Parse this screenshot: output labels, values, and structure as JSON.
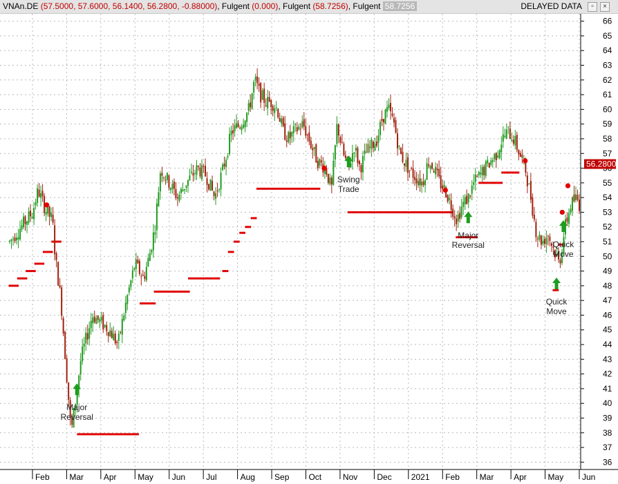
{
  "title": {
    "symbol": "VNAn.DE",
    "ohlc": "(57.5000, 57.6000, 56.1400, 56.2800, -0.88000)",
    "ind1_name": "Fulgent",
    "ind1_value": "(0.000)",
    "ind2_name": "Fulgent",
    "ind2_value": "(58.7256)",
    "ind3_name": "Fulgent",
    "ind3_value": "58.7256",
    "status": "DELAYED DATA"
  },
  "window_buttons": {
    "restore": "▫",
    "close": "×"
  },
  "last_price_label": "56.2800",
  "colors": {
    "up": "#1f9a1f",
    "down": "#a0200c",
    "signal": "#e00000",
    "arrow": "#1e9c1e",
    "grid": "#b8b8b8",
    "last_price_bg": "#c00000"
  },
  "chart_data": {
    "type": "candlestick",
    "y_range": [
      35.5,
      66.5
    ],
    "y_ticks": [
      36,
      37,
      38,
      39,
      40,
      41,
      42,
      43,
      44,
      45,
      46,
      47,
      48,
      49,
      50,
      51,
      52,
      53,
      54,
      55,
      56,
      57,
      58,
      59,
      60,
      61,
      62,
      63,
      64,
      65,
      66
    ],
    "x_range": [
      0,
      100
    ],
    "months": [
      {
        "label": "Feb",
        "x": 4.0
      },
      {
        "label": "Mar",
        "x": 10.0
      },
      {
        "label": "Apr",
        "x": 16.0
      },
      {
        "label": "May",
        "x": 22.0
      },
      {
        "label": "Jun",
        "x": 28.0
      },
      {
        "label": "Jul",
        "x": 34.0
      },
      {
        "label": "Aug",
        "x": 40.0
      },
      {
        "label": "Sep",
        "x": 46.0
      },
      {
        "label": "Oct",
        "x": 52.0
      },
      {
        "label": "Nov",
        "x": 58.0
      },
      {
        "label": "Dec",
        "x": 64.0
      },
      {
        "label": "2021",
        "x": 70.0
      },
      {
        "label": "Feb",
        "x": 76.0
      },
      {
        "label": "Mar",
        "x": 82.0
      },
      {
        "label": "Apr",
        "x": 88.0
      },
      {
        "label": "May",
        "x": 94.0
      },
      {
        "label": "Jun",
        "x": 100.0
      }
    ],
    "price_path": [
      [
        0.0,
        51.0
      ],
      [
        2.0,
        52.0
      ],
      [
        4.0,
        53.0
      ],
      [
        5.0,
        54.5
      ],
      [
        6.5,
        53.0
      ],
      [
        7.5,
        52.5
      ],
      [
        8.0,
        50.0
      ],
      [
        9.0,
        47.0
      ],
      [
        10.0,
        42.0
      ],
      [
        10.8,
        38.0
      ],
      [
        11.5,
        40.0
      ],
      [
        12.5,
        43.0
      ],
      [
        13.5,
        44.5
      ],
      [
        14.5,
        46.0
      ],
      [
        16.0,
        45.5
      ],
      [
        17.5,
        45.0
      ],
      [
        19.0,
        44.0
      ],
      [
        20.5,
        47.0
      ],
      [
        22.0,
        49.5
      ],
      [
        23.5,
        48.5
      ],
      [
        24.5,
        50.0
      ],
      [
        25.5,
        52.0
      ],
      [
        26.5,
        56.0
      ],
      [
        28.0,
        55.0
      ],
      [
        29.5,
        54.0
      ],
      [
        31.0,
        55.0
      ],
      [
        33.0,
        56.0
      ],
      [
        34.5,
        55.5
      ],
      [
        36.0,
        54.0
      ],
      [
        37.5,
        56.0
      ],
      [
        39.0,
        58.5
      ],
      [
        40.5,
        59.0
      ],
      [
        42.0,
        60.0
      ],
      [
        43.0,
        62.0
      ],
      [
        44.0,
        61.0
      ],
      [
        45.0,
        60.5
      ],
      [
        46.0,
        60.5
      ],
      [
        47.0,
        60.0
      ],
      [
        48.0,
        58.5
      ],
      [
        49.0,
        58.0
      ],
      [
        50.0,
        58.5
      ],
      [
        51.5,
        59.0
      ],
      [
        52.5,
        58.0
      ],
      [
        54.0,
        56.5
      ],
      [
        55.5,
        56.0
      ],
      [
        56.5,
        54.5
      ],
      [
        57.5,
        59.0
      ],
      [
        58.5,
        57.0
      ],
      [
        59.5,
        56.0
      ],
      [
        60.5,
        57.5
      ],
      [
        61.5,
        56.0
      ],
      [
        62.5,
        57.0
      ],
      [
        63.5,
        57.5
      ],
      [
        64.5,
        58.0
      ],
      [
        65.5,
        59.5
      ],
      [
        66.5,
        60.0
      ],
      [
        67.5,
        59.0
      ],
      [
        68.5,
        57.0
      ],
      [
        70.0,
        56.0
      ],
      [
        71.0,
        55.5
      ],
      [
        72.5,
        55.0
      ],
      [
        73.5,
        56.5
      ],
      [
        74.5,
        56.0
      ],
      [
        75.5,
        55.0
      ],
      [
        76.5,
        54.5
      ],
      [
        77.5,
        53.5
      ],
      [
        78.5,
        52.5
      ],
      [
        79.5,
        53.5
      ],
      [
        80.5,
        54.0
      ],
      [
        81.5,
        55.0
      ],
      [
        82.5,
        55.5
      ],
      [
        83.5,
        56.0
      ],
      [
        84.5,
        56.5
      ],
      [
        85.5,
        57.0
      ],
      [
        86.5,
        58.0
      ],
      [
        87.5,
        58.5
      ],
      [
        88.5,
        58.0
      ],
      [
        89.5,
        57.0
      ],
      [
        90.5,
        56.0
      ],
      [
        91.5,
        54.0
      ],
      [
        92.5,
        51.5
      ],
      [
        93.5,
        51.0
      ],
      [
        94.5,
        51.5
      ],
      [
        95.5,
        50.5
      ],
      [
        96.5,
        49.5
      ],
      [
        97.5,
        52.0
      ],
      [
        98.5,
        53.5
      ],
      [
        99.5,
        54.0
      ],
      [
        100.0,
        53.5
      ]
    ],
    "stop_levels": [
      {
        "x0": 0.0,
        "x1": 1.5,
        "y": 48.0
      },
      {
        "x0": 1.5,
        "x1": 3.0,
        "y": 48.5
      },
      {
        "x0": 3.0,
        "x1": 4.5,
        "y": 49.0
      },
      {
        "x0": 4.5,
        "x1": 6.0,
        "y": 49.5
      },
      {
        "x0": 6.0,
        "x1": 7.5,
        "y": 50.3
      },
      {
        "x0": 7.5,
        "x1": 9.0,
        "y": 51.0
      },
      {
        "x0": 12.0,
        "x1": 22.5,
        "y": 37.9
      },
      {
        "x0": 23.0,
        "x1": 25.5,
        "y": 46.8
      },
      {
        "x0": 25.5,
        "x1": 31.5,
        "y": 47.6
      },
      {
        "x0": 31.5,
        "x1": 37.0,
        "y": 48.5
      },
      {
        "x0": 37.5,
        "x1": 38.5,
        "y": 49.0
      },
      {
        "x0": 38.5,
        "x1": 39.5,
        "y": 50.3
      },
      {
        "x0": 39.5,
        "x1": 40.5,
        "y": 51.0
      },
      {
        "x0": 40.5,
        "x1": 41.5,
        "y": 51.6
      },
      {
        "x0": 41.5,
        "x1": 42.5,
        "y": 52.0
      },
      {
        "x0": 42.5,
        "x1": 43.5,
        "y": 52.6
      },
      {
        "x0": 43.5,
        "x1": 54.5,
        "y": 54.6
      },
      {
        "x0": 59.5,
        "x1": 78.0,
        "y": 53.0
      },
      {
        "x0": 78.5,
        "x1": 82.0,
        "y": 51.3
      },
      {
        "x0": 82.5,
        "x1": 86.5,
        "y": 55.0
      },
      {
        "x0": 86.5,
        "x1": 89.5,
        "y": 55.7
      },
      {
        "x0": 95.5,
        "x1": 96.5,
        "y": 47.7
      },
      {
        "x0": 96.5,
        "x1": 97.5,
        "y": 50.8
      }
    ],
    "sell_signals": [
      {
        "x": 6.5,
        "y": 53.5
      },
      {
        "x": 55.2,
        "y": 56.0
      },
      {
        "x": 76.5,
        "y": 54.5
      },
      {
        "x": 90.5,
        "y": 56.5
      },
      {
        "x": 97.0,
        "y": 53.0
      },
      {
        "x": 98.0,
        "y": 54.8
      }
    ],
    "buy_signals": [
      {
        "x": 11.8,
        "label_lines": [
          "Major",
          "Reversal"
        ],
        "arrow_y": 40.7,
        "label_y": 40.0
      },
      {
        "x": 59.5,
        "label_lines": [
          "Swing",
          "Trade"
        ],
        "arrow_y": 56.2,
        "label_y": 55.5
      },
      {
        "x": 80.5,
        "label_lines": [
          "Major",
          "Reversal"
        ],
        "arrow_y": 52.4,
        "label_y": 51.7
      },
      {
        "x": 96.0,
        "label_lines": [
          "Quick",
          "Move"
        ],
        "arrow_y": 47.9,
        "label_y": 47.2
      },
      {
        "x": 97.2,
        "label_lines": [
          "Quick",
          "Move"
        ],
        "arrow_y": 51.8,
        "label_y": 51.1
      }
    ]
  }
}
